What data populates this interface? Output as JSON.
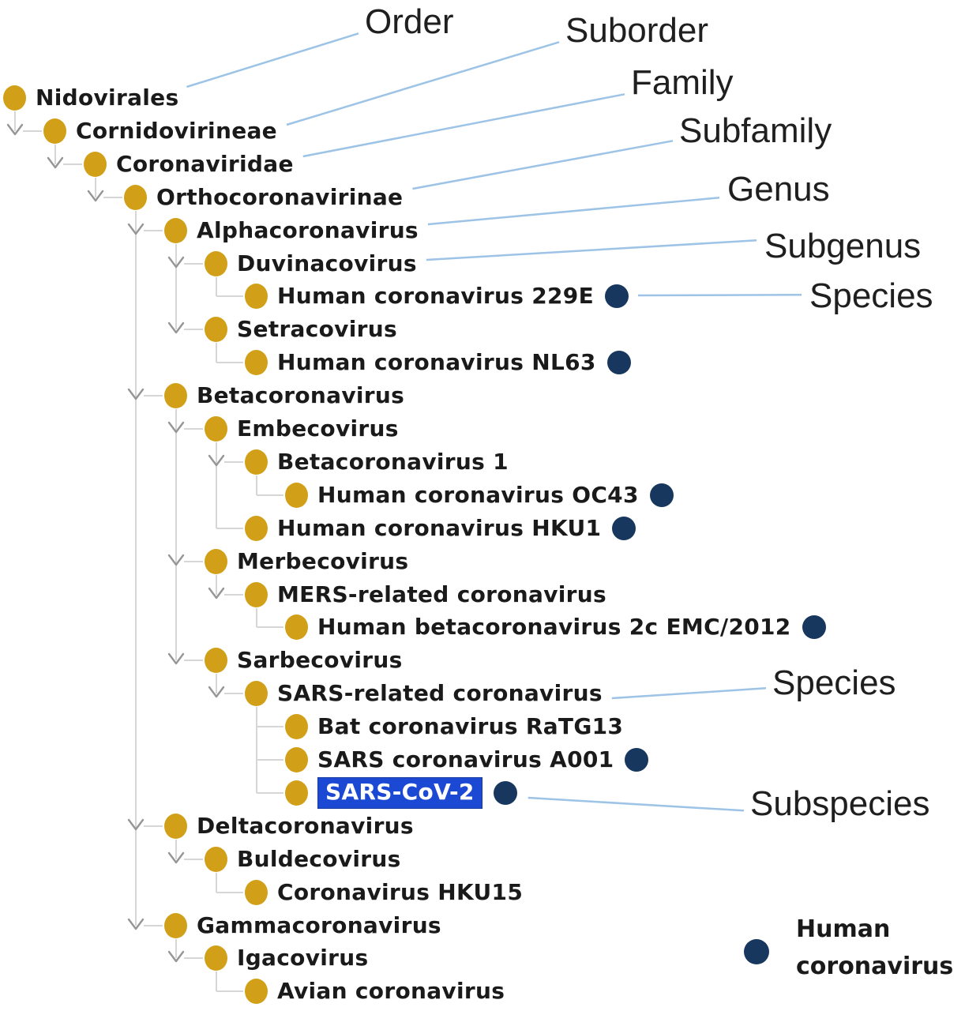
{
  "colors": {
    "taxon_dot": "#D2A018",
    "human_dot": "#17375E",
    "tree_line": "#D6D6D6",
    "chevron": "#969696",
    "callout_line": "#9DC3E6",
    "highlight_bg": "#1C49D4",
    "highlight_text": "#FFFFFF",
    "node_text": "#1A1A1A",
    "label_text": "#1F1F1F"
  },
  "tree": {
    "nodes": [
      {
        "id": "nidovirales",
        "label": "Nidovirales",
        "level": 0,
        "expandable": true,
        "human": false,
        "selected": false
      },
      {
        "id": "cornidovirineae",
        "label": "Cornidovirineae",
        "level": 1,
        "expandable": true,
        "human": false,
        "selected": false
      },
      {
        "id": "coronaviridae",
        "label": "Coronaviridae",
        "level": 2,
        "expandable": true,
        "human": false,
        "selected": false
      },
      {
        "id": "orthocoronavirinae",
        "label": "Orthocoronavirinae",
        "level": 3,
        "expandable": true,
        "human": false,
        "selected": false
      },
      {
        "id": "alphacoronavirus",
        "label": "Alphacoronavirus",
        "level": 4,
        "expandable": true,
        "human": false,
        "selected": false
      },
      {
        "id": "duvinacovirus",
        "label": "Duvinacovirus",
        "level": 5,
        "expandable": true,
        "human": false,
        "selected": false
      },
      {
        "id": "human-coronavirus-229e",
        "label": "Human coronavirus 229E",
        "level": 6,
        "expandable": false,
        "human": true,
        "selected": false
      },
      {
        "id": "setracovirus",
        "label": "Setracovirus",
        "level": 5,
        "expandable": true,
        "human": false,
        "selected": false
      },
      {
        "id": "human-coronavirus-nl63",
        "label": "Human coronavirus NL63",
        "level": 6,
        "expandable": false,
        "human": true,
        "selected": false
      },
      {
        "id": "betacoronavirus",
        "label": "Betacoronavirus",
        "level": 4,
        "expandable": true,
        "human": false,
        "selected": false
      },
      {
        "id": "embecovirus",
        "label": "Embecovirus",
        "level": 5,
        "expandable": true,
        "human": false,
        "selected": false
      },
      {
        "id": "betacoronavirus-1",
        "label": "Betacoronavirus 1",
        "level": 6,
        "expandable": true,
        "human": false,
        "selected": false
      },
      {
        "id": "human-coronavirus-oc43",
        "label": "Human coronavirus OC43",
        "level": 7,
        "expandable": false,
        "human": true,
        "selected": false
      },
      {
        "id": "human-coronavirus-hku1",
        "label": "Human coronavirus HKU1",
        "level": 6,
        "expandable": false,
        "human": true,
        "selected": false
      },
      {
        "id": "merbecovirus",
        "label": "Merbecovirus",
        "level": 5,
        "expandable": true,
        "human": false,
        "selected": false
      },
      {
        "id": "mers-related-coronavirus",
        "label": "MERS-related coronavirus",
        "level": 6,
        "expandable": true,
        "human": false,
        "selected": false
      },
      {
        "id": "human-betacoronavirus-2c-emc-2012",
        "label": "Human betacoronavirus 2c EMC/2012",
        "level": 7,
        "expandable": false,
        "human": true,
        "selected": false
      },
      {
        "id": "sarbecovirus",
        "label": "Sarbecovirus",
        "level": 5,
        "expandable": true,
        "human": false,
        "selected": false
      },
      {
        "id": "sars-related-coronavirus",
        "label": "SARS-related coronavirus",
        "level": 6,
        "expandable": true,
        "human": false,
        "selected": false
      },
      {
        "id": "bat-coronavirus-ratg13",
        "label": "Bat coronavirus RaTG13",
        "level": 7,
        "expandable": false,
        "human": false,
        "selected": false
      },
      {
        "id": "sars-coronavirus-a001",
        "label": "SARS coronavirus A001",
        "level": 7,
        "expandable": false,
        "human": true,
        "selected": false
      },
      {
        "id": "sars-cov-2",
        "label": "SARS-CoV-2",
        "level": 7,
        "expandable": false,
        "human": true,
        "selected": true
      },
      {
        "id": "deltacoronavirus",
        "label": "Deltacoronavirus",
        "level": 4,
        "expandable": true,
        "human": false,
        "selected": false
      },
      {
        "id": "buldecovirus",
        "label": "Buldecovirus",
        "level": 5,
        "expandable": true,
        "human": false,
        "selected": false
      },
      {
        "id": "coronavirus-hku15",
        "label": "Coronavirus HKU15",
        "level": 6,
        "expandable": false,
        "human": false,
        "selected": false
      },
      {
        "id": "gammacoronavirus",
        "label": "Gammacoronavirus",
        "level": 4,
        "expandable": true,
        "human": false,
        "selected": false
      },
      {
        "id": "igacovirus",
        "label": "Igacovirus",
        "level": 5,
        "expandable": true,
        "human": false,
        "selected": false
      },
      {
        "id": "avian-coronavirus",
        "label": "Avian coronavirus",
        "level": 6,
        "expandable": false,
        "human": false,
        "selected": false
      }
    ]
  },
  "rank_labels": [
    {
      "id": "order",
      "label": "Order",
      "points_to": "nidovirales"
    },
    {
      "id": "suborder",
      "label": "Suborder",
      "points_to": "cornidovirineae"
    },
    {
      "id": "family",
      "label": "Family",
      "points_to": "coronaviridae"
    },
    {
      "id": "subfamily",
      "label": "Subfamily",
      "points_to": "orthocoronavirinae"
    },
    {
      "id": "genus",
      "label": "Genus",
      "points_to": "alphacoronavirus"
    },
    {
      "id": "subgenus",
      "label": "Subgenus",
      "points_to": "duvinacovirus"
    },
    {
      "id": "species-229e",
      "label": "Species",
      "points_to": "human-coronavirus-229e"
    },
    {
      "id": "species-sars",
      "label": "Species",
      "points_to": "sars-related-coronavirus"
    },
    {
      "id": "subspecies",
      "label": "Subspecies",
      "points_to": "sars-cov-2"
    }
  ],
  "legend": {
    "label": "Human coronavirus"
  }
}
